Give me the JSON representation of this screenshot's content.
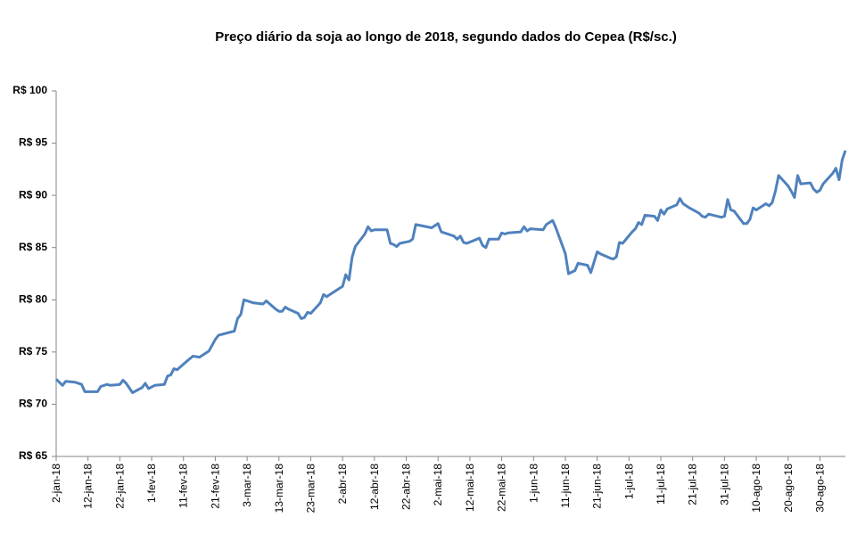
{
  "chart_data": {
    "type": "line",
    "title": "Preço diário da soja ao longo de 2018, segundo dados do Cepea (R$/sc.)",
    "x": [
      "2-jan-18",
      "4-jan-18",
      "5-jan-18",
      "8-jan-18",
      "10-jan-18",
      "11-jan-18",
      "15-jan-18",
      "16-jan-18",
      "18-jan-18",
      "19-jan-18",
      "22-jan-18",
      "23-jan-18",
      "24-jan-18",
      "26-jan-18",
      "29-jan-18",
      "30-jan-18",
      "31-jan-18",
      "2-fev-18",
      "5-fev-18",
      "6-fev-18",
      "7-fev-18",
      "8-fev-18",
      "9-fev-18",
      "12-fev-18",
      "14-fev-18",
      "16-fev-18",
      "19-fev-18",
      "21-fev-18",
      "22-fev-18",
      "27-fev-18",
      "28-fev-18",
      "1-mar-18",
      "2-mar-18",
      "5-mar-18",
      "8-mar-18",
      "9-mar-18",
      "12-mar-18",
      "13-mar-18",
      "14-mar-18",
      "15-mar-18",
      "16-mar-18",
      "19-mar-18",
      "20-mar-18",
      "21-mar-18",
      "22-mar-18",
      "23-mar-18",
      "26-mar-18",
      "27-mar-18",
      "28-mar-18",
      "2-abr-18",
      "3-abr-18",
      "4-abr-18",
      "5-abr-18",
      "6-abr-18",
      "9-abr-18",
      "10-abr-18",
      "11-abr-18",
      "12-abr-18",
      "16-abr-18",
      "17-abr-18",
      "18-abr-18",
      "19-abr-18",
      "20-abr-18",
      "23-abr-18",
      "24-abr-18",
      "25-abr-18",
      "30-abr-18",
      "2-mai-18",
      "3-mai-18",
      "7-mai-18",
      "8-mai-18",
      "9-mai-18",
      "10-mai-18",
      "11-mai-18",
      "15-mai-18",
      "16-mai-18",
      "17-mai-18",
      "18-mai-18",
      "21-mai-18",
      "22-mai-18",
      "23-mai-18",
      "24-mai-18",
      "28-mai-18",
      "29-mai-18",
      "30-mai-18",
      "31-mai-18",
      "4-jun-18",
      "5-jun-18",
      "7-jun-18",
      "8-jun-18",
      "11-jun-18",
      "12-jun-18",
      "14-jun-18",
      "15-jun-18",
      "18-jun-18",
      "19-jun-18",
      "20-jun-18",
      "21-jun-18",
      "22-jun-18",
      "25-jun-18",
      "26-jun-18",
      "27-jun-18",
      "28-jun-18",
      "29-jun-18",
      "2-jul-18",
      "3-jul-18",
      "4-jul-18",
      "5-jul-18",
      "6-jul-18",
      "9-jul-18",
      "10-jul-18",
      "11-jul-18",
      "12-jul-18",
      "13-jul-18",
      "16-jul-18",
      "17-jul-18",
      "18-jul-18",
      "20-jul-18",
      "23-jul-18",
      "24-jul-18",
      "25-jul-18",
      "26-jul-18",
      "30-jul-18",
      "31-jul-18",
      "1-ago-18",
      "2-ago-18",
      "3-ago-18",
      "6-ago-18",
      "7-ago-18",
      "8-ago-18",
      "9-ago-18",
      "10-ago-18",
      "13-ago-18",
      "14-ago-18",
      "15-ago-18",
      "16-ago-18",
      "17-ago-18",
      "20-ago-18",
      "21-ago-18",
      "22-ago-18",
      "23-ago-18",
      "24-ago-18",
      "27-ago-18",
      "28-ago-18",
      "29-ago-18",
      "30-ago-18",
      "31-ago-18",
      "3-set-18",
      "4-set-18",
      "5-set-18",
      "6-set-18",
      "7-set-18"
    ],
    "series": [
      {
        "color": "#4f81bd",
        "values": [
          72.4,
          71.8,
          72.2,
          72.1,
          71.9,
          71.2,
          71.2,
          71.7,
          71.9,
          71.8,
          71.9,
          72.3,
          72.0,
          71.1,
          71.6,
          72.0,
          71.5,
          71.8,
          71.9,
          72.7,
          72.8,
          73.4,
          73.3,
          74.1,
          74.6,
          74.5,
          75.1,
          76.2,
          76.6,
          77.0,
          78.2,
          78.6,
          80.0,
          79.7,
          79.6,
          79.9,
          79.1,
          78.9,
          78.9,
          79.3,
          79.1,
          78.7,
          78.2,
          78.3,
          78.8,
          78.7,
          79.7,
          80.5,
          80.3,
          81.3,
          82.4,
          81.9,
          84.1,
          85.1,
          86.3,
          87.0,
          86.6,
          86.7,
          86.7,
          85.4,
          85.3,
          85.1,
          85.4,
          85.6,
          85.8,
          87.2,
          86.9,
          87.3,
          86.5,
          86.1,
          85.8,
          86.1,
          85.5,
          85.4,
          85.9,
          85.2,
          85.0,
          85.8,
          85.8,
          86.4,
          86.3,
          86.4,
          86.5,
          87.0,
          86.6,
          86.8,
          86.7,
          87.2,
          87.6,
          86.9,
          84.4,
          82.5,
          82.8,
          83.5,
          83.3,
          82.6,
          83.6,
          84.6,
          84.4,
          84.0,
          83.9,
          84.1,
          85.5,
          85.4,
          86.5,
          86.8,
          87.4,
          87.2,
          88.1,
          88.0,
          87.6,
          88.6,
          88.2,
          88.7,
          89.1,
          89.7,
          89.2,
          88.8,
          88.3,
          88.0,
          87.9,
          88.2,
          87.9,
          88.0,
          89.6,
          88.6,
          88.5,
          87.3,
          87.3,
          87.7,
          88.8,
          88.6,
          89.2,
          89.0,
          89.3,
          90.4,
          91.9,
          90.9,
          90.4,
          89.8,
          91.9,
          91.1,
          91.2,
          90.6,
          90.3,
          90.5,
          91.1,
          92.1,
          92.6,
          91.5,
          93.4,
          94.3
        ]
      }
    ],
    "xlim": [
      "2-jan-18",
      "7-set-18"
    ],
    "xticks": [
      "2-jan-18",
      "12-jan-18",
      "22-jan-18",
      "1-fev-18",
      "11-fev-18",
      "21-fev-18",
      "3-mar-18",
      "13-mar-18",
      "23-mar-18",
      "2-abr-18",
      "12-abr-18",
      "22-abr-18",
      "2-mai-18",
      "12-mai-18",
      "22-mai-18",
      "1-jun-18",
      "11-jun-18",
      "21-jun-18",
      "1-jul-18",
      "11-jul-18",
      "21-jul-18",
      "31-jul-18",
      "10-ago-18",
      "20-ago-18",
      "30-ago-18"
    ],
    "ylim": [
      65,
      100
    ],
    "yticks": [
      {
        "value": 65,
        "label": "R$ 65"
      },
      {
        "value": 70,
        "label": "R$ 70"
      },
      {
        "value": 75,
        "label": "R$ 75"
      },
      {
        "value": 80,
        "label": "R$ 80"
      },
      {
        "value": 85,
        "label": "R$ 85"
      },
      {
        "value": 90,
        "label": "R$ 90"
      },
      {
        "value": 95,
        "label": "R$ 95"
      },
      {
        "value": 100,
        "label": "R$ 100"
      }
    ]
  }
}
